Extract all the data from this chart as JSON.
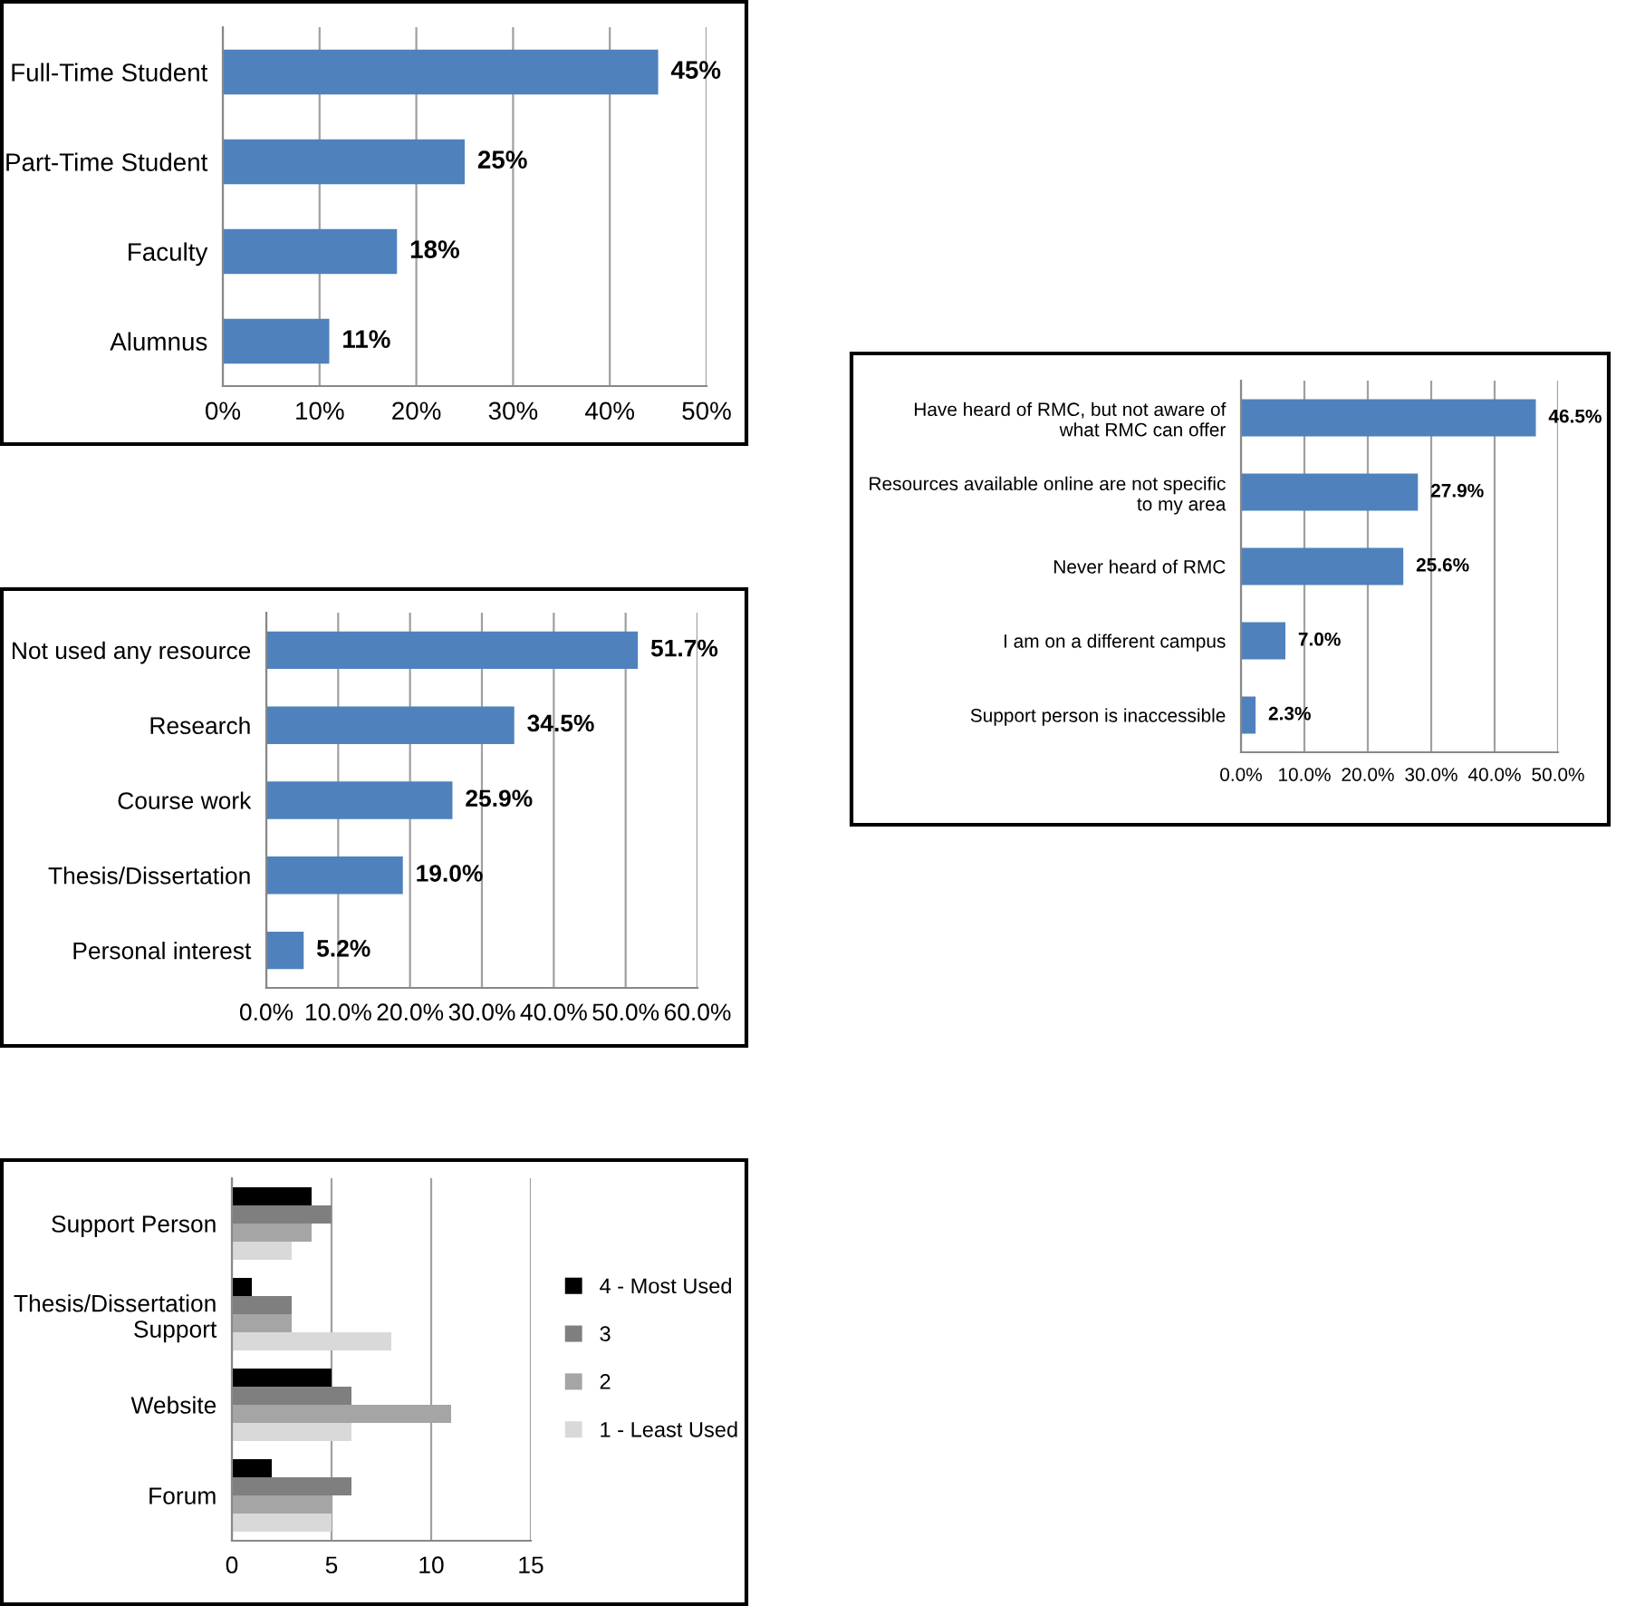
{
  "chart_data": [
    {
      "type": "bar",
      "orientation": "horizontal",
      "categories": [
        "Full-Time Student",
        "Part-Time Student",
        "Faculty",
        "Alumnus"
      ],
      "values": [
        45,
        25,
        18,
        11
      ],
      "value_labels": [
        "45%",
        "25%",
        "18%",
        "11%"
      ],
      "color": "#4f81bd",
      "xlim": [
        0,
        50
      ],
      "xticks": [
        {
          "value": 0,
          "label": "0%"
        },
        {
          "value": 10,
          "label": "10%"
        },
        {
          "value": 20,
          "label": "20%"
        },
        {
          "value": 30,
          "label": "30%"
        },
        {
          "value": 40,
          "label": "40%"
        },
        {
          "value": 50,
          "label": "50%"
        }
      ],
      "grid": "x",
      "legend": false
    },
    {
      "type": "bar",
      "orientation": "horizontal",
      "categories": [
        "Have heard of RMC, but not aware of\nwhat RMC can offer",
        "Resources available online are not specific\nto my area",
        "Never heard of RMC",
        "I am on a different campus",
        "Support person is inaccessible"
      ],
      "values": [
        46.5,
        27.9,
        25.6,
        7.0,
        2.3
      ],
      "value_labels": [
        "46.5%",
        "27.9%",
        "25.6%",
        "7.0%",
        "2.3%"
      ],
      "color": "#4f81bd",
      "xlim": [
        0,
        50
      ],
      "xticks": [
        {
          "value": 0,
          "label": "0.0%"
        },
        {
          "value": 10,
          "label": "10.0%"
        },
        {
          "value": 20,
          "label": "20.0%"
        },
        {
          "value": 30,
          "label": "30.0%"
        },
        {
          "value": 40,
          "label": "40.0%"
        },
        {
          "value": 50,
          "label": "50.0%"
        }
      ],
      "grid": "x",
      "legend": false
    },
    {
      "type": "bar",
      "orientation": "horizontal",
      "categories": [
        "Not used any resource",
        "Research",
        "Course work",
        "Thesis/Dissertation",
        "Personal interest"
      ],
      "values": [
        51.7,
        34.5,
        25.9,
        19.0,
        5.2
      ],
      "value_labels": [
        "51.7%",
        "34.5%",
        "25.9%",
        "19.0%",
        "5.2%"
      ],
      "color": "#4f81bd",
      "xlim": [
        0,
        60
      ],
      "xticks": [
        {
          "value": 0,
          "label": "0.0%"
        },
        {
          "value": 10,
          "label": "10.0%"
        },
        {
          "value": 20,
          "label": "20.0%"
        },
        {
          "value": 30,
          "label": "30.0%"
        },
        {
          "value": 40,
          "label": "40.0%"
        },
        {
          "value": 50,
          "label": "50.0%"
        },
        {
          "value": 60,
          "label": "60.0%"
        }
      ],
      "grid": "x",
      "legend": false
    },
    {
      "type": "bar",
      "orientation": "horizontal",
      "categories": [
        "Support Person",
        "Thesis/Dissertation\nSupport",
        "Website",
        "Forum"
      ],
      "series": [
        {
          "name": "4 - Most Used",
          "color": "#000000",
          "values": [
            4,
            1,
            5,
            2
          ]
        },
        {
          "name": "3",
          "color": "#7f7f7f",
          "values": [
            5,
            3,
            6,
            6
          ]
        },
        {
          "name": "2",
          "color": "#a5a5a5",
          "values": [
            4,
            3,
            11,
            5
          ]
        },
        {
          "name": "1 - Least Used",
          "color": "#d9d9d9",
          "values": [
            3,
            8,
            6,
            5
          ]
        }
      ],
      "xlim": [
        0,
        15
      ],
      "xticks": [
        0,
        5,
        10,
        15
      ],
      "grid": "x",
      "legend": "right"
    }
  ]
}
